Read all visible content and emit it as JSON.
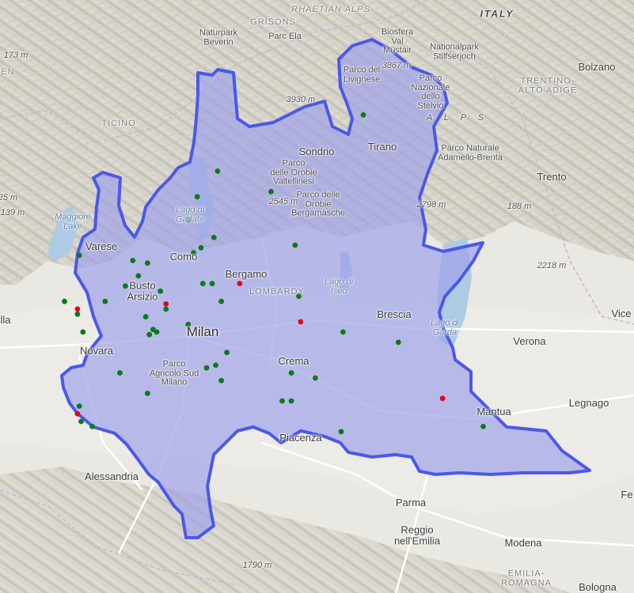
{
  "map": {
    "region_name": "LOMBARDY",
    "colors": {
      "land": "#e9e8e2",
      "mountain": "#d8d6cc",
      "plain": "#ecebe6",
      "water": "#aecbe4",
      "region_fill": "#9ea0ea",
      "region_border": "#4c58e8",
      "dot_green": "#0a7a1a",
      "dot_red": "#e8001a",
      "road": "#ffffff",
      "border": "#c6b6d6"
    },
    "places": {
      "italy": "ITALY",
      "rhaetian_alps": "RHAETIAN ALPS",
      "grisons": "GRISONS",
      "naturpark_beverin": "Naturpark\nBeverin",
      "parc_ela": "Parc Ela",
      "biosfera_val_mustair": "Biosfera\nVal\nMüstair",
      "nationalpark_stilfserjoch": "Nationalpark\nStilfserjoch",
      "bolzano": "Bolzano",
      "trentino_alto_adige": "TRENTINO-\nALTO ADIGE",
      "elev_3867": "3867 m",
      "parco_livignese": "Parco del\nLivignese",
      "parco_stelvio": "Parco\nNazionale\ndello\nStelvio",
      "elev_3930": "3930 m",
      "alps": "A L P S",
      "elev_173": "173 m",
      "en": "EN",
      "ticino": "TICINO",
      "sondrio": "Sondrio",
      "tirano": "Tirano",
      "parco_adamello": "Parco Naturale\nAdamello-Brenta",
      "elev_25": "25 m",
      "elev_139": "139 m",
      "maggiore": "Maggiore\nLake",
      "lago_garlate": "Lago di\nGarlate",
      "parco_orobie_valt": "Parco\ndelle Orobie\nValtellinesi",
      "parco_orobie_berg": "Parco delle\nOrobie\nBergamasche",
      "elev_2545": "2545 m",
      "elev_2798": "2798 m",
      "trento": "Trento",
      "elev_188": "188 m",
      "varese": "Varese",
      "como": "Como",
      "elev_2218": "2218 m",
      "bergamo": "Bergamo",
      "busto_arsizio": "Busto\nArsizio",
      "lombardy": "LOMBARDY",
      "lago_iseo": "Lago di\nIseo",
      "brescia": "Brescia",
      "lago_garda": "Lago di\nGarda",
      "vice": "Vice",
      "lla": "lla",
      "milan": "Milan",
      "novara": "Novara",
      "verona": "Verona",
      "crema": "Crema",
      "parco_agricolo": "Parco\nAgricolo Sud\nMilano",
      "legnago": "Legnago",
      "mantua": "Mantua",
      "piacenza": "Piacenza",
      "alessandria": "Alessandria",
      "fe": "Fe",
      "parma": "Parma",
      "reggio": "Reggio\nnell'Emilia",
      "modena": "Modena",
      "elev_1790": "1790 m",
      "emilia_romagna": "EMILIA-\nROMAGNA",
      "bologna": "Bologna"
    },
    "markers": [
      {
        "type": "green",
        "lon": 9.58,
        "lat": 46.25
      },
      {
        "type": "green",
        "lon": 9.87,
        "lat": 46.17
      },
      {
        "type": "green",
        "lon": 10.37,
        "lat": 46.47
      },
      {
        "type": "green",
        "lon": 9.47,
        "lat": 46.15
      },
      {
        "type": "green",
        "lon": 9.42,
        "lat": 46.06
      },
      {
        "type": "green",
        "lon": 9.49,
        "lat": 45.95
      },
      {
        "type": "green",
        "lon": 9.45,
        "lat": 45.93
      },
      {
        "type": "green",
        "lon": 9.56,
        "lat": 45.99
      },
      {
        "type": "green",
        "lon": 10.0,
        "lat": 45.96
      },
      {
        "type": "green",
        "lon": 8.83,
        "lat": 45.92
      },
      {
        "type": "green",
        "lon": 9.12,
        "lat": 45.9
      },
      {
        "type": "green",
        "lon": 9.2,
        "lat": 45.89
      },
      {
        "type": "green",
        "lon": 9.15,
        "lat": 45.84
      },
      {
        "type": "green",
        "lon": 9.5,
        "lat": 45.81
      },
      {
        "type": "green",
        "lon": 9.55,
        "lat": 45.81
      },
      {
        "type": "red",
        "lon": 9.7,
        "lat": 45.81
      },
      {
        "type": "green",
        "lon": 9.08,
        "lat": 45.8
      },
      {
        "type": "green",
        "lon": 9.27,
        "lat": 45.78
      },
      {
        "type": "green",
        "lon": 10.02,
        "lat": 45.76
      },
      {
        "type": "green",
        "lon": 8.75,
        "lat": 45.74
      },
      {
        "type": "green",
        "lon": 8.97,
        "lat": 45.74
      },
      {
        "type": "green",
        "lon": 9.6,
        "lat": 45.74
      },
      {
        "type": "red",
        "lon": 9.3,
        "lat": 45.73
      },
      {
        "type": "red",
        "lon": 8.82,
        "lat": 45.71
      },
      {
        "type": "green",
        "lon": 9.3,
        "lat": 45.71
      },
      {
        "type": "green",
        "lon": 8.82,
        "lat": 45.69
      },
      {
        "type": "green",
        "lon": 9.19,
        "lat": 45.68
      },
      {
        "type": "red",
        "lon": 10.03,
        "lat": 45.66
      },
      {
        "type": "green",
        "lon": 9.42,
        "lat": 45.65
      },
      {
        "type": "green",
        "lon": 9.23,
        "lat": 45.63
      },
      {
        "type": "green",
        "lon": 9.25,
        "lat": 45.62
      },
      {
        "type": "green",
        "lon": 10.26,
        "lat": 45.62
      },
      {
        "type": "green",
        "lon": 8.85,
        "lat": 45.62
      },
      {
        "type": "green",
        "lon": 9.21,
        "lat": 45.61
      },
      {
        "type": "green",
        "lon": 10.56,
        "lat": 45.58
      },
      {
        "type": "green",
        "lon": 9.63,
        "lat": 45.54
      },
      {
        "type": "green",
        "lon": 9.57,
        "lat": 45.49
      },
      {
        "type": "green",
        "lon": 9.52,
        "lat": 45.48
      },
      {
        "type": "green",
        "lon": 9.98,
        "lat": 45.46
      },
      {
        "type": "green",
        "lon": 9.05,
        "lat": 45.46
      },
      {
        "type": "green",
        "lon": 10.11,
        "lat": 45.44
      },
      {
        "type": "green",
        "lon": 9.6,
        "lat": 45.43
      },
      {
        "type": "green",
        "lon": 9.2,
        "lat": 45.38
      },
      {
        "type": "red",
        "lon": 10.8,
        "lat": 45.36
      },
      {
        "type": "green",
        "lon": 9.98,
        "lat": 45.35
      },
      {
        "type": "green",
        "lon": 9.93,
        "lat": 45.35
      },
      {
        "type": "green",
        "lon": 8.83,
        "lat": 45.33
      },
      {
        "type": "red",
        "lon": 8.82,
        "lat": 45.3
      },
      {
        "type": "green",
        "lon": 8.84,
        "lat": 45.27
      },
      {
        "type": "green",
        "lon": 8.9,
        "lat": 45.25
      },
      {
        "type": "green",
        "lon": 11.02,
        "lat": 45.25
      },
      {
        "type": "green",
        "lon": 10.25,
        "lat": 45.23
      }
    ]
  }
}
